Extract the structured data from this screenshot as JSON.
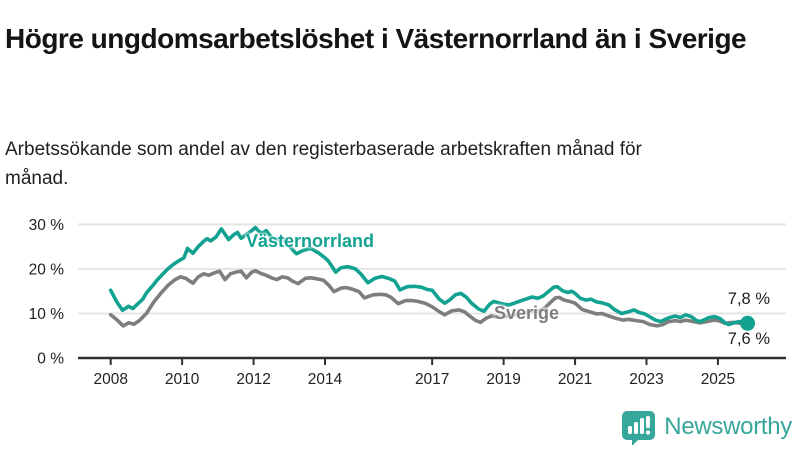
{
  "header": {
    "title": "Högre ungdomsarbetslöshet i Västernorrland än i Sverige",
    "subtitle": "Arbetssökande som andel av den registerbaserade arbetskraften månad för månad."
  },
  "chart_data": {
    "type": "line",
    "title": "Högre ungdomsarbetslöshet i Västernorrland än i Sverige",
    "subtitle": "Arbetssökande som andel av den registerbaserade arbetskraften månad för månad.",
    "unit": "%",
    "grid": "horizontal",
    "x_axis": {
      "range": [
        2008,
        2025.9
      ],
      "ticks": [
        2008,
        2010,
        2012,
        2014,
        2017,
        2019,
        2021,
        2023,
        2025
      ],
      "tick_labels": [
        "2008",
        "2010",
        "2012",
        "2014",
        "2017",
        "2019",
        "2021",
        "2023",
        "2025"
      ]
    },
    "y_axis": {
      "range": [
        0,
        30
      ],
      "ticks": [
        0,
        10,
        20,
        30
      ],
      "tick_labels": [
        "0 %",
        "10 %",
        "20 %",
        "30 %"
      ]
    },
    "series": [
      {
        "name": "Sverige",
        "color": "#7e7e7e",
        "end_label": "7,6 %",
        "points": [
          [
            2008.0,
            9.7
          ],
          [
            2008.17,
            8.6
          ],
          [
            2008.35,
            7.2
          ],
          [
            2008.5,
            7.9
          ],
          [
            2008.65,
            7.6
          ],
          [
            2008.8,
            8.4
          ],
          [
            2009.0,
            10.0
          ],
          [
            2009.2,
            12.5
          ],
          [
            2009.4,
            14.5
          ],
          [
            2009.6,
            16.3
          ],
          [
            2009.8,
            17.6
          ],
          [
            2009.95,
            18.2
          ],
          [
            2010.1,
            17.9
          ],
          [
            2010.3,
            16.8
          ],
          [
            2010.45,
            18.2
          ],
          [
            2010.6,
            18.9
          ],
          [
            2010.75,
            18.6
          ],
          [
            2010.9,
            19.1
          ],
          [
            2011.05,
            19.5
          ],
          [
            2011.2,
            17.6
          ],
          [
            2011.35,
            18.9
          ],
          [
            2011.5,
            19.3
          ],
          [
            2011.65,
            19.5
          ],
          [
            2011.8,
            18.0
          ],
          [
            2011.95,
            19.3
          ],
          [
            2012.05,
            19.6
          ],
          [
            2012.2,
            19.0
          ],
          [
            2012.35,
            18.6
          ],
          [
            2012.5,
            18.0
          ],
          [
            2012.65,
            17.6
          ],
          [
            2012.8,
            18.2
          ],
          [
            2012.95,
            18.0
          ],
          [
            2013.1,
            17.2
          ],
          [
            2013.25,
            16.7
          ],
          [
            2013.45,
            17.9
          ],
          [
            2013.6,
            18.0
          ],
          [
            2013.75,
            17.8
          ],
          [
            2013.95,
            17.5
          ],
          [
            2014.1,
            16.4
          ],
          [
            2014.25,
            14.9
          ],
          [
            2014.45,
            15.7
          ],
          [
            2014.6,
            15.8
          ],
          [
            2014.75,
            15.5
          ],
          [
            2014.95,
            14.9
          ],
          [
            2015.1,
            13.5
          ],
          [
            2015.35,
            14.2
          ],
          [
            2015.55,
            14.3
          ],
          [
            2015.7,
            14.2
          ],
          [
            2015.85,
            13.6
          ],
          [
            2016.05,
            12.2
          ],
          [
            2016.25,
            12.9
          ],
          [
            2016.45,
            12.9
          ],
          [
            2016.6,
            12.7
          ],
          [
            2016.8,
            12.3
          ],
          [
            2017.0,
            11.5
          ],
          [
            2017.2,
            10.4
          ],
          [
            2017.35,
            9.7
          ],
          [
            2017.55,
            10.6
          ],
          [
            2017.75,
            10.8
          ],
          [
            2017.9,
            10.4
          ],
          [
            2018.05,
            9.4
          ],
          [
            2018.2,
            8.5
          ],
          [
            2018.35,
            8.0
          ],
          [
            2018.5,
            8.9
          ],
          [
            2018.65,
            9.4
          ],
          [
            2018.8,
            9.3
          ],
          [
            2019.0,
            9.3
          ],
          [
            2019.3,
            9.7
          ],
          [
            2019.5,
            10.0
          ],
          [
            2019.65,
            10.2
          ],
          [
            2019.85,
            10.6
          ],
          [
            2020.0,
            10.5
          ],
          [
            2020.15,
            11.2
          ],
          [
            2020.3,
            12.4
          ],
          [
            2020.45,
            13.5
          ],
          [
            2020.55,
            13.6
          ],
          [
            2020.7,
            13.0
          ],
          [
            2020.85,
            12.7
          ],
          [
            2021.0,
            12.3
          ],
          [
            2021.2,
            10.9
          ],
          [
            2021.4,
            10.4
          ],
          [
            2021.6,
            9.9
          ],
          [
            2021.75,
            10.0
          ],
          [
            2021.95,
            9.4
          ],
          [
            2022.15,
            8.9
          ],
          [
            2022.35,
            8.5
          ],
          [
            2022.5,
            8.7
          ],
          [
            2022.7,
            8.4
          ],
          [
            2022.9,
            8.2
          ],
          [
            2023.1,
            7.5
          ],
          [
            2023.3,
            7.2
          ],
          [
            2023.45,
            7.5
          ],
          [
            2023.6,
            8.1
          ],
          [
            2023.8,
            8.4
          ],
          [
            2023.95,
            8.2
          ],
          [
            2024.1,
            8.5
          ],
          [
            2024.3,
            8.2
          ],
          [
            2024.5,
            7.9
          ],
          [
            2024.7,
            8.2
          ],
          [
            2024.9,
            8.5
          ],
          [
            2025.05,
            8.3
          ],
          [
            2025.2,
            7.8
          ],
          [
            2025.4,
            8.0
          ],
          [
            2025.55,
            7.9
          ],
          [
            2025.7,
            7.7
          ],
          [
            2025.83,
            7.6
          ]
        ]
      },
      {
        "name": "Västernorrland",
        "color": "#12a291",
        "end_label": "7,8 %",
        "end_dot": true,
        "points": [
          [
            2008.0,
            15.2
          ],
          [
            2008.17,
            12.6
          ],
          [
            2008.33,
            10.7
          ],
          [
            2008.5,
            11.6
          ],
          [
            2008.62,
            11.1
          ],
          [
            2008.75,
            12.1
          ],
          [
            2008.9,
            13.2
          ],
          [
            2009.0,
            14.6
          ],
          [
            2009.15,
            16.0
          ],
          [
            2009.3,
            17.5
          ],
          [
            2009.45,
            18.8
          ],
          [
            2009.6,
            20.0
          ],
          [
            2009.75,
            21.0
          ],
          [
            2009.9,
            21.8
          ],
          [
            2010.05,
            22.5
          ],
          [
            2010.15,
            24.6
          ],
          [
            2010.3,
            23.5
          ],
          [
            2010.45,
            25.0
          ],
          [
            2010.6,
            26.2
          ],
          [
            2010.7,
            26.8
          ],
          [
            2010.8,
            26.3
          ],
          [
            2010.95,
            27.2
          ],
          [
            2011.1,
            29.0
          ],
          [
            2011.2,
            27.8
          ],
          [
            2011.3,
            26.6
          ],
          [
            2011.45,
            27.7
          ],
          [
            2011.55,
            28.2
          ],
          [
            2011.65,
            26.9
          ],
          [
            2011.8,
            27.7
          ],
          [
            2011.95,
            28.6
          ],
          [
            2012.05,
            29.3
          ],
          [
            2012.15,
            28.4
          ],
          [
            2012.25,
            28.0
          ],
          [
            2012.35,
            28.6
          ],
          [
            2012.5,
            27.1
          ],
          [
            2012.65,
            26.5
          ],
          [
            2012.8,
            26.9
          ],
          [
            2013.0,
            25.1
          ],
          [
            2013.2,
            23.4
          ],
          [
            2013.4,
            24.2
          ],
          [
            2013.6,
            24.6
          ],
          [
            2013.8,
            23.7
          ],
          [
            2014.0,
            22.5
          ],
          [
            2014.1,
            21.7
          ],
          [
            2014.3,
            19.3
          ],
          [
            2014.45,
            20.3
          ],
          [
            2014.65,
            20.5
          ],
          [
            2014.85,
            20.0
          ],
          [
            2015.0,
            18.9
          ],
          [
            2015.2,
            16.9
          ],
          [
            2015.4,
            17.9
          ],
          [
            2015.6,
            18.3
          ],
          [
            2015.8,
            17.8
          ],
          [
            2015.95,
            17.3
          ],
          [
            2016.1,
            15.3
          ],
          [
            2016.3,
            16.0
          ],
          [
            2016.5,
            16.1
          ],
          [
            2016.7,
            15.9
          ],
          [
            2016.85,
            15.4
          ],
          [
            2017.0,
            15.2
          ],
          [
            2017.2,
            13.2
          ],
          [
            2017.35,
            12.3
          ],
          [
            2017.5,
            13.1
          ],
          [
            2017.65,
            14.2
          ],
          [
            2017.8,
            14.5
          ],
          [
            2017.95,
            13.7
          ],
          [
            2018.1,
            12.3
          ],
          [
            2018.3,
            11.0
          ],
          [
            2018.45,
            10.5
          ],
          [
            2018.6,
            12.0
          ],
          [
            2018.72,
            12.7
          ],
          [
            2018.85,
            12.4
          ],
          [
            2019.0,
            12.1
          ],
          [
            2019.15,
            11.9
          ],
          [
            2019.3,
            12.3
          ],
          [
            2019.5,
            12.9
          ],
          [
            2019.65,
            13.3
          ],
          [
            2019.8,
            13.7
          ],
          [
            2019.95,
            13.4
          ],
          [
            2020.1,
            13.9
          ],
          [
            2020.25,
            14.9
          ],
          [
            2020.4,
            15.9
          ],
          [
            2020.5,
            16.0
          ],
          [
            2020.65,
            15.1
          ],
          [
            2020.8,
            14.7
          ],
          [
            2020.9,
            15.0
          ],
          [
            2021.0,
            14.5
          ],
          [
            2021.15,
            13.4
          ],
          [
            2021.3,
            13.0
          ],
          [
            2021.45,
            13.2
          ],
          [
            2021.6,
            12.6
          ],
          [
            2021.75,
            12.4
          ],
          [
            2021.95,
            11.9
          ],
          [
            2022.1,
            10.9
          ],
          [
            2022.3,
            10.0
          ],
          [
            2022.5,
            10.4
          ],
          [
            2022.65,
            10.8
          ],
          [
            2022.8,
            10.2
          ],
          [
            2022.95,
            9.9
          ],
          [
            2023.1,
            9.2
          ],
          [
            2023.25,
            8.5
          ],
          [
            2023.4,
            8.2
          ],
          [
            2023.5,
            8.6
          ],
          [
            2023.65,
            9.1
          ],
          [
            2023.8,
            9.4
          ],
          [
            2023.95,
            9.1
          ],
          [
            2024.1,
            9.7
          ],
          [
            2024.25,
            9.3
          ],
          [
            2024.4,
            8.4
          ],
          [
            2024.5,
            8.2
          ],
          [
            2024.62,
            8.6
          ],
          [
            2024.75,
            9.1
          ],
          [
            2024.9,
            9.3
          ],
          [
            2025.05,
            8.9
          ],
          [
            2025.2,
            7.9
          ],
          [
            2025.3,
            7.5
          ],
          [
            2025.45,
            7.9
          ],
          [
            2025.6,
            8.2
          ],
          [
            2025.7,
            7.7
          ],
          [
            2025.83,
            7.8
          ]
        ]
      }
    ],
    "series_labels": {
      "vasternorrland": "Västernorrland",
      "sverige": "Sverige"
    },
    "end_labels": {
      "top": "7,8 %",
      "bottom": "7,6 %"
    },
    "colors": {
      "vasternorrland": "#12a291",
      "sverige": "#7e7e7e",
      "grid": "#e4e4e4",
      "axis": "#303030"
    },
    "legend_position": "inline-labels"
  },
  "branding": {
    "logo_text": "Newsworthy",
    "logo_color": "#38a79b"
  }
}
